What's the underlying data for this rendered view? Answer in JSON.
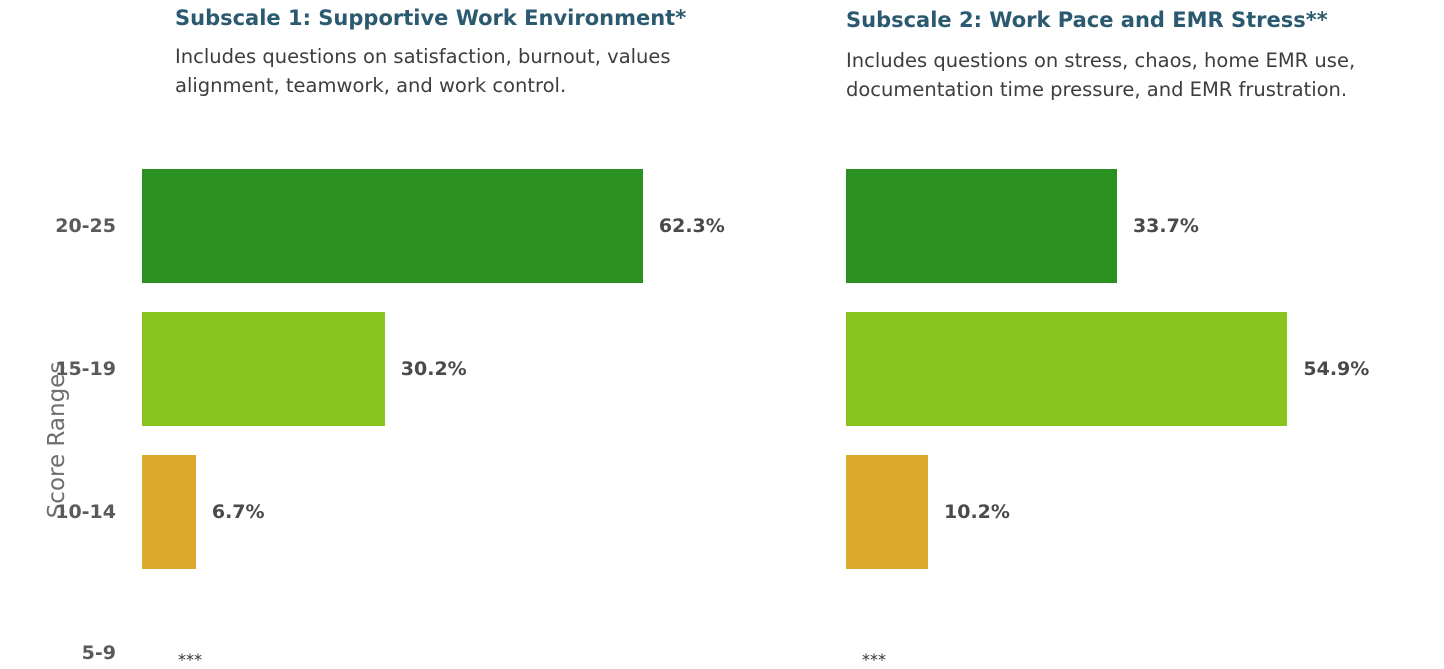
{
  "panels": [
    {
      "title": "Subscale 1: Supportive Work Environment*",
      "desc_line1": "Includes questions on satisfaction, burnout, values",
      "desc_line2": "alignment, teamwork, and work control.",
      "suppressed_label": "***"
    },
    {
      "title": "Subscale 2: Work Pace and EMR Stress**",
      "desc_line1": "Includes questions on stress, chaos, home EMR use,",
      "desc_line2": "documentation time pressure, and EMR frustration.",
      "suppressed_label": "***"
    }
  ],
  "chart_data": [
    {
      "type": "bar",
      "orientation": "horizontal",
      "title": "Subscale 1: Supportive Work Environment*",
      "ylabel": "Score Ranges",
      "categories": [
        "20-25",
        "15-19",
        "10-14",
        "5-9"
      ],
      "values": [
        62.3,
        30.2,
        6.7,
        null
      ],
      "labels": [
        "62.3%",
        "30.2%",
        "6.7%",
        "***"
      ],
      "colors": [
        "#2a9121",
        "#88c31e",
        "#dba92b",
        "#dba92b"
      ]
    },
    {
      "type": "bar",
      "orientation": "horizontal",
      "title": "Subscale 2: Work Pace and EMR Stress**",
      "ylabel": "Score Ranges",
      "categories": [
        "20-25",
        "15-19",
        "10-14",
        "5-9"
      ],
      "values": [
        33.7,
        54.9,
        10.2,
        null
      ],
      "labels": [
        "33.7%",
        "54.9%",
        "10.2%",
        "***"
      ],
      "colors": [
        "#2a9121",
        "#88c31e",
        "#dba92b",
        "#dba92b"
      ]
    }
  ]
}
